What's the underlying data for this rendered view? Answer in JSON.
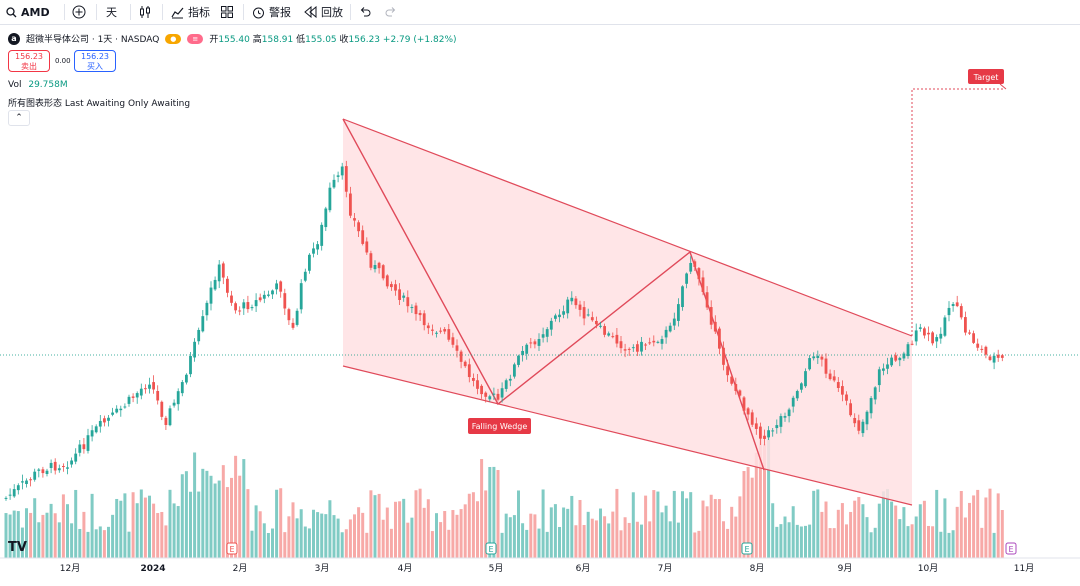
{
  "toolbar": {
    "symbol": "AMD",
    "interval": "天",
    "indicators_label": "指标",
    "alerts_label": "警报",
    "replay_label": "回放"
  },
  "legend": {
    "name": "超微半导体公司 · 1天 · NASDAQ",
    "open_label": "开",
    "open": "155.40",
    "high_label": "高",
    "high": "158.91",
    "low_label": "低",
    "low": "155.05",
    "close_label": "收",
    "close": "156.23",
    "change": "+2.79 (+1.82%)"
  },
  "trade": {
    "sell_price": "156.23",
    "sell_label": "卖出",
    "spread": "0.00",
    "buy_price": "156.23",
    "buy_label": "买入"
  },
  "volume": {
    "label": "Vol",
    "value": "29.758M"
  },
  "pattern_legend": "所有图表形态 Last Awaiting Only Awaiting",
  "annotations": {
    "wedge_label": "Falling Wedge",
    "target_label": "Target"
  },
  "x_axis": [
    "12月",
    "2024",
    "2月",
    "3月",
    "4月",
    "5月",
    "6月",
    "7月",
    "8月",
    "9月",
    "10月",
    "11月"
  ],
  "earnings_marker": "E",
  "colors": {
    "up": "#26a69a",
    "down": "#ef5350",
    "wedge_fill": "#ffe0e3",
    "wedge_line": "#e04a5a"
  }
}
